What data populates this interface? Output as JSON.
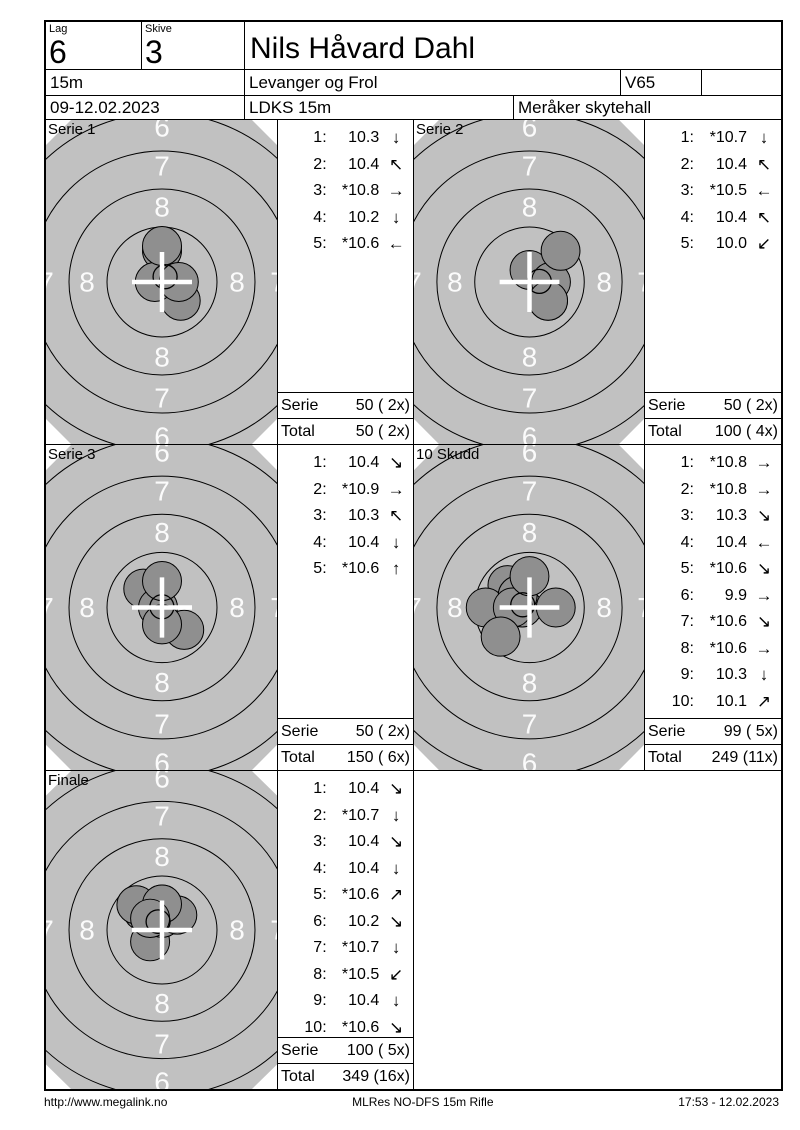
{
  "header": {
    "lag_label": "Lag",
    "lag_value": "6",
    "skive_label": "Skive",
    "skive_value": "3",
    "shooter_name": "Nils Håvard Dahl",
    "distance": "15m",
    "club": "Levanger og Frol",
    "class": "V65",
    "date_range": "09-12.02.2023",
    "event": "LDKS 15m",
    "venue": "Meråker skytehall"
  },
  "series": [
    {
      "label": "Serie 1",
      "shots": [
        {
          "n": "1:",
          "value": "10.3",
          "arrow": "↓"
        },
        {
          "n": "2:",
          "value": "10.4",
          "arrow": "↖"
        },
        {
          "n": "3:",
          "value": "*10.8",
          "arrow": "→"
        },
        {
          "n": "4:",
          "value": "10.2",
          "arrow": "↓"
        },
        {
          "n": "5:",
          "value": "*10.6",
          "arrow": "←"
        }
      ],
      "serie_label": "Serie",
      "serie_value": "50 ( 2x)",
      "total_label": "Total",
      "total_value": "50 ( 2x)"
    },
    {
      "label": "Serie 2",
      "shots": [
        {
          "n": "1:",
          "value": "*10.7",
          "arrow": "↓"
        },
        {
          "n": "2:",
          "value": "10.4",
          "arrow": "↖"
        },
        {
          "n": "3:",
          "value": "*10.5",
          "arrow": "←"
        },
        {
          "n": "4:",
          "value": "10.4",
          "arrow": "↖"
        },
        {
          "n": "5:",
          "value": "10.0",
          "arrow": "↙"
        }
      ],
      "serie_label": "Serie",
      "serie_value": "50 ( 2x)",
      "total_label": "Total",
      "total_value": "100 ( 4x)"
    },
    {
      "label": "Serie 3",
      "shots": [
        {
          "n": "1:",
          "value": "10.4",
          "arrow": "↘"
        },
        {
          "n": "2:",
          "value": "*10.9",
          "arrow": "→"
        },
        {
          "n": "3:",
          "value": "10.3",
          "arrow": "↖"
        },
        {
          "n": "4:",
          "value": "10.4",
          "arrow": "↓"
        },
        {
          "n": "5:",
          "value": "*10.6",
          "arrow": "↑"
        }
      ],
      "serie_label": "Serie",
      "serie_value": "50 ( 2x)",
      "total_label": "Total",
      "total_value": "150 ( 6x)"
    },
    {
      "label": "10 Skudd",
      "shots": [
        {
          "n": "1:",
          "value": "*10.8",
          "arrow": "→"
        },
        {
          "n": "2:",
          "value": "*10.8",
          "arrow": "→"
        },
        {
          "n": "3:",
          "value": "10.3",
          "arrow": "↘"
        },
        {
          "n": "4:",
          "value": "10.4",
          "arrow": "←"
        },
        {
          "n": "5:",
          "value": "*10.6",
          "arrow": "↘"
        },
        {
          "n": "6:",
          "value": "9.9",
          "arrow": "→"
        },
        {
          "n": "7:",
          "value": "*10.6",
          "arrow": "↘"
        },
        {
          "n": "8:",
          "value": "*10.6",
          "arrow": "→"
        },
        {
          "n": "9:",
          "value": "10.3",
          "arrow": "↓"
        },
        {
          "n": "10:",
          "value": "10.1",
          "arrow": "↗"
        }
      ],
      "serie_label": "Serie",
      "serie_value": "99 ( 5x)",
      "total_label": "Total",
      "total_value": "249 (11x)"
    },
    {
      "label": "Finale",
      "shots": [
        {
          "n": "1:",
          "value": "10.4",
          "arrow": "↘"
        },
        {
          "n": "2:",
          "value": "*10.7",
          "arrow": "↓"
        },
        {
          "n": "3:",
          "value": "10.4",
          "arrow": "↘"
        },
        {
          "n": "4:",
          "value": "10.4",
          "arrow": "↓"
        },
        {
          "n": "5:",
          "value": "*10.6",
          "arrow": "↗"
        },
        {
          "n": "6:",
          "value": "10.2",
          "arrow": "↘"
        },
        {
          "n": "7:",
          "value": "*10.7",
          "arrow": "↓"
        },
        {
          "n": "8:",
          "value": "*10.5",
          "arrow": "↙"
        },
        {
          "n": "9:",
          "value": "10.4",
          "arrow": "↓"
        },
        {
          "n": "10:",
          "value": "*10.6",
          "arrow": "↘"
        }
      ],
      "serie_label": "Serie",
      "serie_value": "100 ( 5x)",
      "total_label": "Total",
      "total_value": "349 (16x)"
    }
  ],
  "target": {
    "rings": [
      {
        "number": "8",
        "label_radius": 75,
        "positions": [
          "top",
          "bottom",
          "left",
          "right"
        ]
      },
      {
        "number": "7",
        "label_radius": 116,
        "positions": [
          "top",
          "bottom",
          "left",
          "right"
        ]
      },
      {
        "number": "6",
        "label_radius": 155,
        "positions": [
          "top",
          "bottom"
        ]
      }
    ],
    "circle_radii": [
      55,
      93,
      131,
      169
    ],
    "colors": {
      "target_background": "#c1c1c1",
      "shot_hole": "#8f8f8f",
      "ring_line": "#000000",
      "ring_number": "#fbfbfb",
      "cross": "#ffffff"
    }
  },
  "footer": {
    "left": "http://www.megalink.no",
    "center": "MLRes NO-DFS 15m Rifle",
    "right": "17:53 - 12.02.2023"
  }
}
